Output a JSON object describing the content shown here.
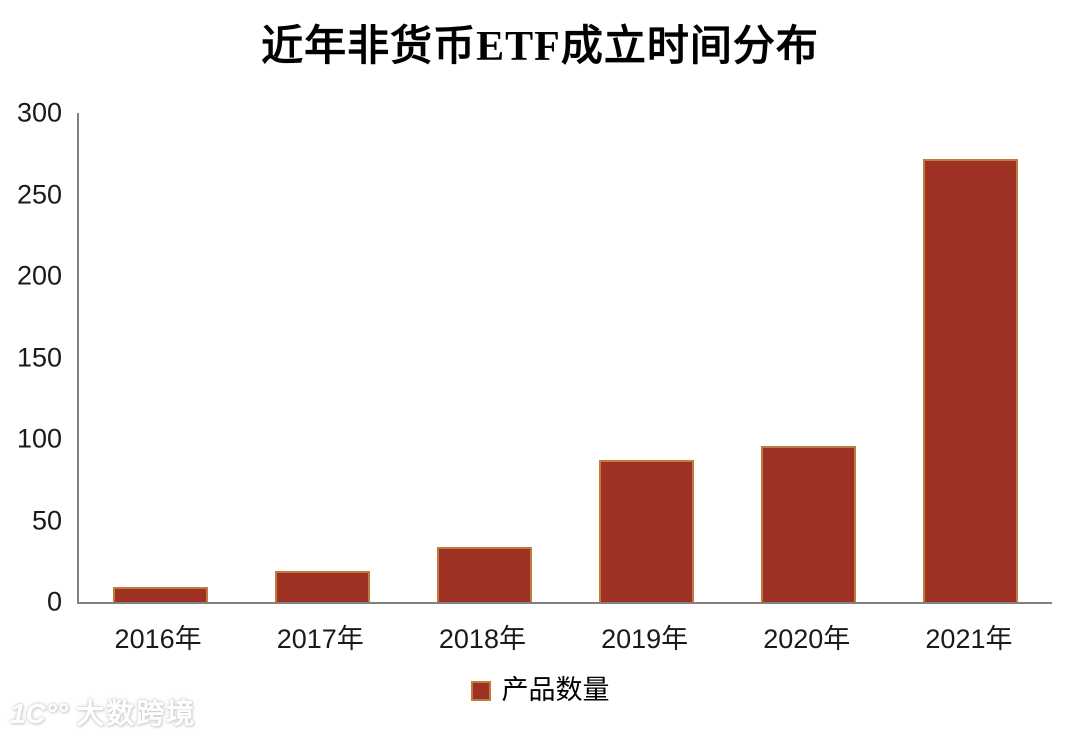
{
  "chart_data": {
    "type": "bar",
    "title": "近年非货币ETF成立时间分布",
    "categories": [
      "2016年",
      "2017年",
      "2018年",
      "2019年",
      "2020年",
      "2021年"
    ],
    "series": [
      {
        "name": "产品数量",
        "values": [
          9,
          19,
          34,
          87,
          96,
          272
        ]
      }
    ],
    "xlabel": "",
    "ylabel": "",
    "ylim": [
      0,
      300
    ],
    "yticks": [
      0,
      50,
      100,
      150,
      200,
      250,
      300
    ],
    "grid": false,
    "legend_position": "bottom",
    "colors": {
      "bar_fill": "#9E3123",
      "bar_border": "#BE7C3F",
      "axis_line": "#808080",
      "tick_text": "#1A1A1A",
      "title_text": "#000000"
    }
  },
  "watermark": {
    "logo": "1C°°",
    "text": "大数跨境"
  }
}
